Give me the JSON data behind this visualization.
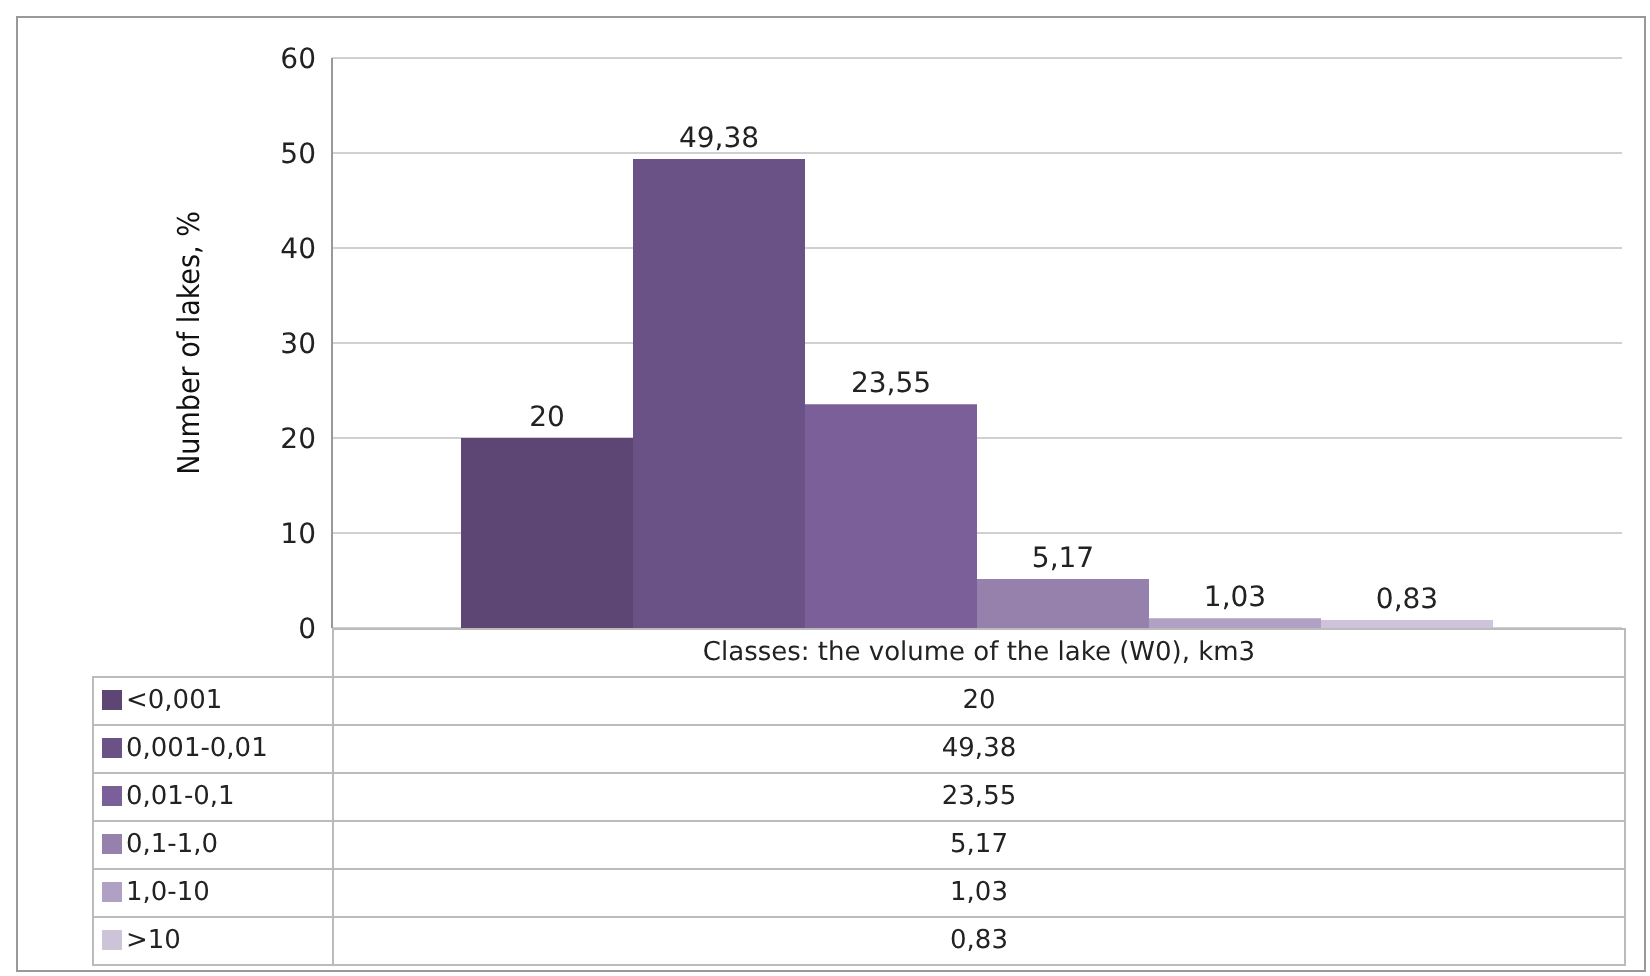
{
  "chart_data": {
    "type": "bar",
    "ylabel": "Number of lakes, %",
    "categories": [
      "Classes: the volume of the lake (W0), km3"
    ],
    "series": [
      {
        "name": "<0,001",
        "color": "#5d4674",
        "values": [
          20
        ],
        "value_labels": [
          "20"
        ]
      },
      {
        "name": "0,001-0,01",
        "color": "#6a5287",
        "values": [
          49.38
        ],
        "value_labels": [
          "49,38"
        ]
      },
      {
        "name": "0,01-0,1",
        "color": "#7b5f98",
        "values": [
          23.55
        ],
        "value_labels": [
          "23,55"
        ]
      },
      {
        "name": "0,1-1,0",
        "color": "#9681ad",
        "values": [
          5.17
        ],
        "value_labels": [
          "5,17"
        ]
      },
      {
        "name": "1,0-10",
        "color": "#b0a1c4",
        "values": [
          1.03
        ],
        "value_labels": [
          "1,03"
        ]
      },
      {
        "name": ">10",
        "color": "#cdc4da",
        "values": [
          0.83
        ],
        "value_labels": [
          "0,83"
        ]
      }
    ],
    "ylim": [
      0,
      60
    ],
    "yticks": [
      0,
      10,
      20,
      30,
      40,
      50,
      60
    ],
    "grid": "y",
    "legend": "bottom"
  }
}
